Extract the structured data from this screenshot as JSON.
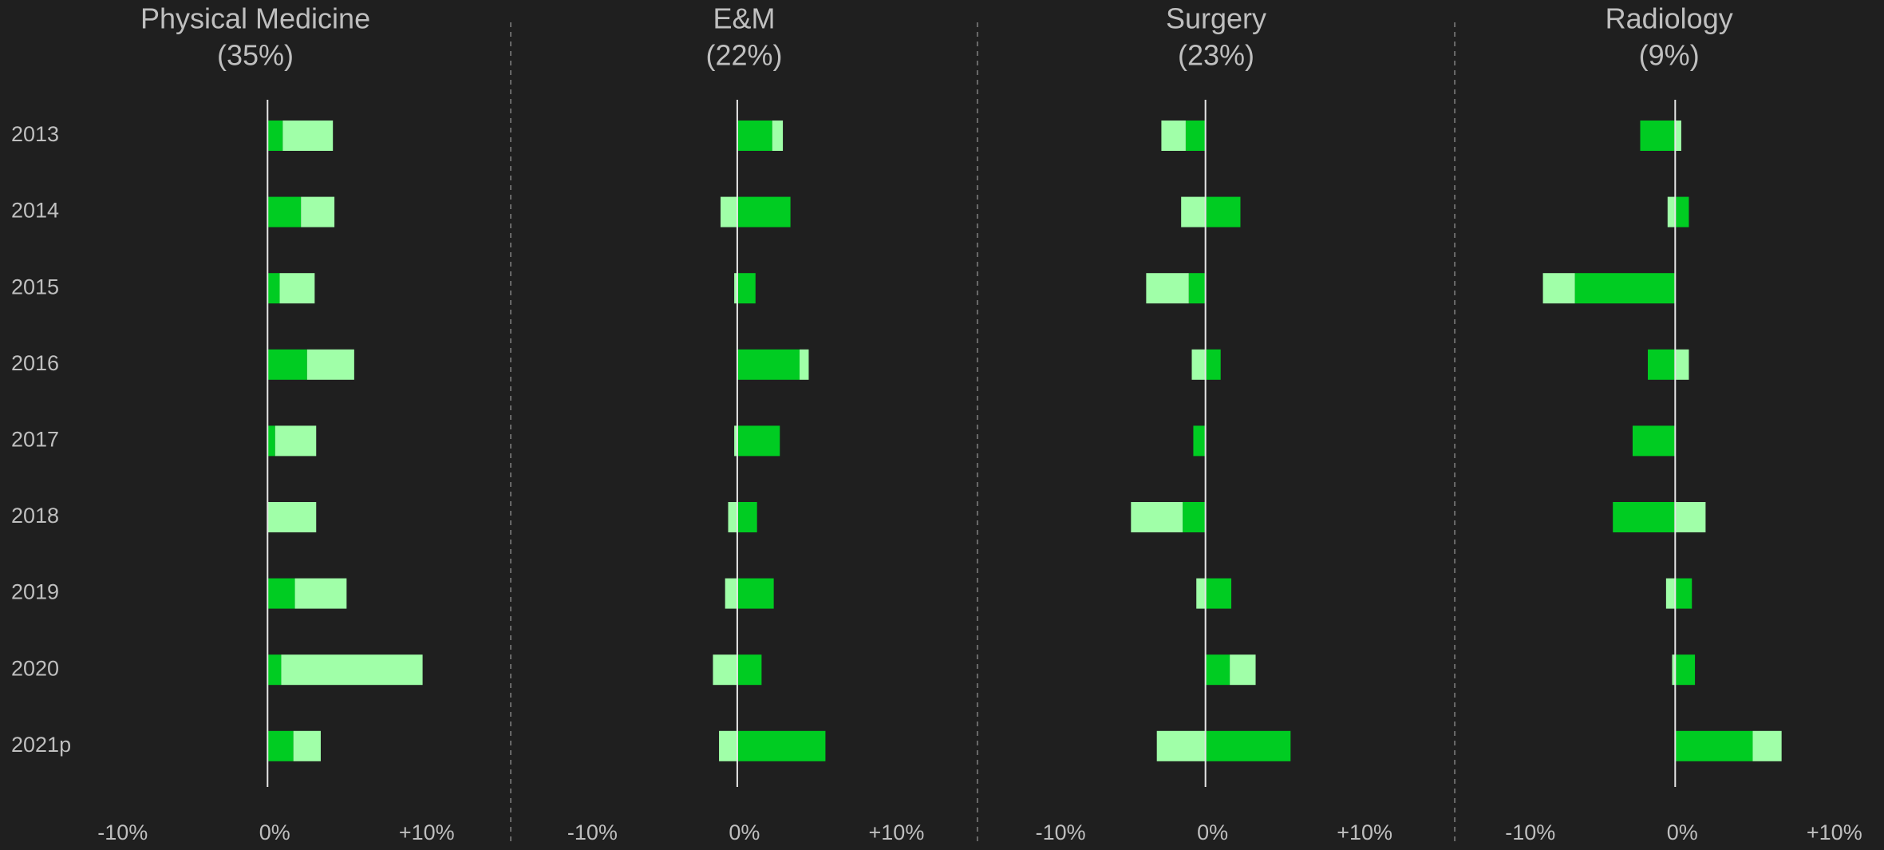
{
  "chart_data": [
    {
      "type": "bar",
      "title": "Physical Medicine",
      "subtitle": "(35%)",
      "categories": [
        "2013",
        "2014",
        "2015",
        "2016",
        "2017",
        "2018",
        "2019",
        "2020",
        "2021p"
      ],
      "series": [
        {
          "color": "#00cc22",
          "values": [
            1.0,
            2.2,
            0.8,
            2.6,
            0.5,
            0,
            1.8,
            0.9,
            1.7
          ]
        },
        {
          "color": "#a0ffa8",
          "values": [
            3.3,
            2.2,
            2.3,
            3.1,
            2.7,
            3.2,
            3.4,
            9.3,
            1.8
          ]
        }
      ],
      "xlim": [
        -17.6,
        16
      ],
      "xticks": [
        {
          "value": -10,
          "label": "-10%"
        },
        {
          "value": 0,
          "label": "0%"
        },
        {
          "value": 10,
          "label": "+10%"
        }
      ]
    },
    {
      "type": "bar",
      "title": "E&M",
      "subtitle": "(22%)",
      "series": [
        {
          "color": "#00cc22",
          "values": [
            2.3,
            3.5,
            1.2,
            4.1,
            2.8,
            1.3,
            2.4,
            1.6,
            5.8
          ]
        },
        {
          "color": "#a0ffa8",
          "values": [
            0.7,
            -1.1,
            -0.2,
            0.6,
            -0.2,
            -0.6,
            -0.8,
            -1.6,
            -1.2
          ]
        }
      ],
      "xlim": [
        -14.9,
        15.8
      ],
      "xticks": [
        {
          "value": -10,
          "label": "-10%"
        },
        {
          "value": 0,
          "label": "0%"
        },
        {
          "value": 10,
          "label": "+10%"
        }
      ]
    },
    {
      "type": "bar",
      "title": "Surgery",
      "subtitle": "(23%)",
      "series": [
        {
          "color": "#00cc22",
          "values": [
            -1.3,
            2.3,
            -1.1,
            1.0,
            -0.8,
            -1.5,
            1.7,
            1.6,
            5.6
          ]
        },
        {
          "color": "#a0ffa8",
          "values": [
            -1.6,
            -1.6,
            -2.8,
            -0.9,
            0,
            -3.4,
            -0.6,
            1.7,
            -3.2
          ]
        }
      ],
      "xlim": [
        -15,
        16.4
      ],
      "xticks": [
        {
          "value": -10,
          "label": "-10%"
        },
        {
          "value": 0,
          "label": "0%"
        },
        {
          "value": 10,
          "label": "+10%"
        }
      ]
    },
    {
      "type": "bar",
      "title": "Radiology",
      "subtitle": "(9%)",
      "series": [
        {
          "color": "#00cc22",
          "values": [
            -2.3,
            0.9,
            -6.6,
            -1.8,
            -2.8,
            -4.1,
            1.1,
            1.3,
            5.1
          ]
        },
        {
          "color": "#a0ffa8",
          "values": [
            0.4,
            -0.5,
            -2.1,
            0.9,
            0,
            2.0,
            -0.6,
            -0.2,
            1.9
          ]
        }
      ],
      "xlim": [
        -14.5,
        13.7
      ],
      "xticks": [
        {
          "value": -10,
          "label": "-10%"
        },
        {
          "value": 0,
          "label": "0%"
        },
        {
          "value": 10,
          "label": "+10%"
        }
      ]
    }
  ]
}
